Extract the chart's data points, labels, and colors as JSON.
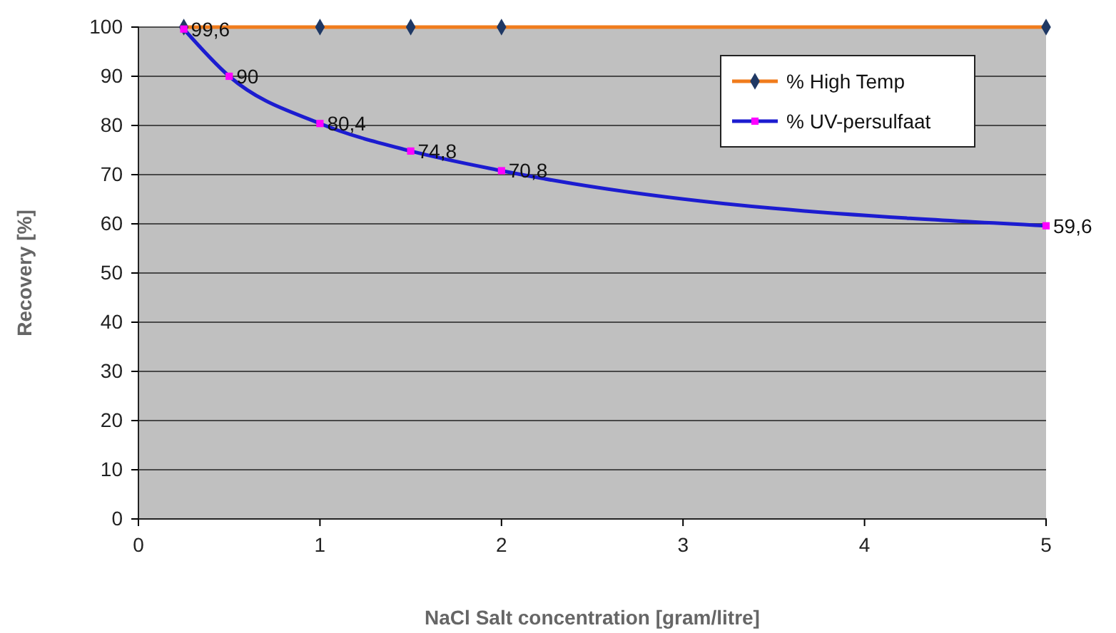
{
  "chart_data": {
    "type": "line",
    "xlabel": "NaCl Salt concentration [gram/litre]",
    "ylabel": "Recovery [%]",
    "xlim": [
      0,
      5
    ],
    "xticks": [
      0,
      1,
      2,
      3,
      4,
      5
    ],
    "ylim": [
      0,
      100
    ],
    "yticks": [
      0,
      10,
      20,
      30,
      40,
      50,
      60,
      70,
      80,
      90,
      100
    ],
    "grid": "y",
    "legend": "top right",
    "series": [
      {
        "name": "% High Temp",
        "color": "#f07c1c",
        "marker": "diamond",
        "x": [
          0.25,
          1,
          1.5,
          2,
          5
        ],
        "values": [
          100,
          100,
          100,
          100,
          100
        ]
      },
      {
        "name": "% UV-persulfaat",
        "color": "#1c1cd0",
        "marker": "square",
        "x": [
          0.25,
          0.5,
          1,
          1.5,
          2,
          5
        ],
        "values": [
          99.6,
          90,
          80.4,
          74.8,
          70.8,
          59.6
        ],
        "value_labels": [
          "99,6",
          "90",
          "80,4",
          "74,8",
          "70,8",
          "59,6"
        ]
      }
    ]
  }
}
